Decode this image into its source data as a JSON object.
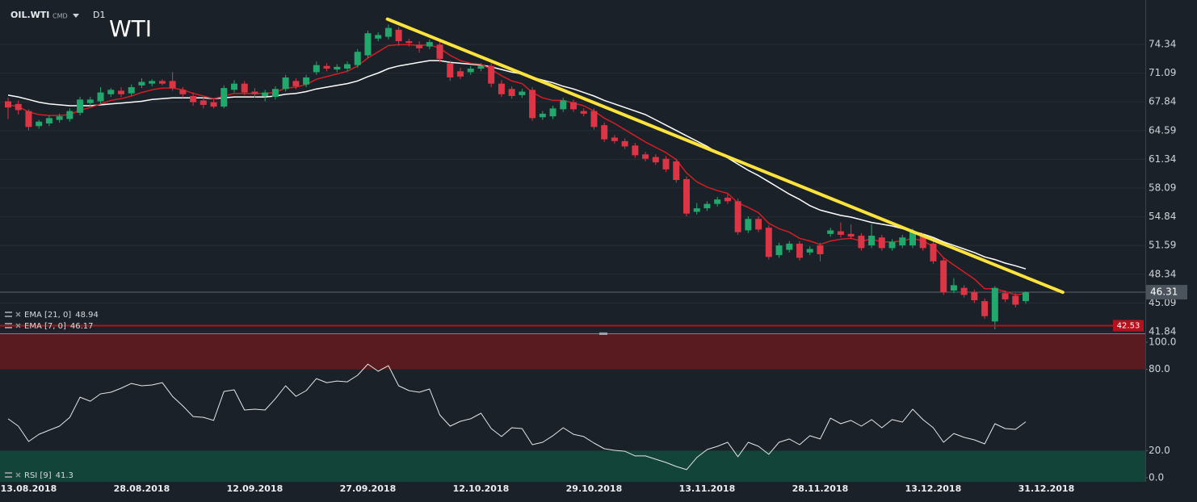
{
  "header": {
    "symbol": "OIL.WTI",
    "market": "CMD",
    "timeframe": "D1",
    "title": "WTI"
  },
  "chart_data": [
    {
      "type": "candlestick",
      "categories": [
        null,
        null,
        "13.08.2018",
        null,
        null,
        null,
        null,
        null,
        null,
        null,
        null,
        null,
        null,
        "28.08.2018",
        null,
        null,
        null,
        null,
        null,
        null,
        null,
        null,
        null,
        null,
        "12.09.2018",
        null,
        null,
        null,
        null,
        null,
        null,
        null,
        null,
        null,
        null,
        "27.09.2018",
        null,
        null,
        null,
        null,
        null,
        null,
        null,
        null,
        null,
        null,
        "12.10.2018",
        null,
        null,
        null,
        null,
        null,
        null,
        null,
        null,
        null,
        null,
        "29.10.2018",
        null,
        null,
        null,
        null,
        null,
        null,
        null,
        null,
        null,
        null,
        "13.11.2018",
        null,
        null,
        null,
        null,
        null,
        null,
        null,
        null,
        null,
        null,
        "28.11.2018",
        null,
        null,
        null,
        null,
        null,
        null,
        null,
        null,
        null,
        null,
        "13.12.2018",
        null,
        null,
        null,
        null,
        null,
        null,
        null,
        null,
        null,
        null,
        "31.12.2018"
      ],
      "open": [
        67.9,
        67.6,
        66.8,
        65.1,
        65.4,
        65.8,
        65.9,
        66.6,
        67.7,
        67.9,
        68.7,
        69.1,
        68.8,
        69.7,
        69.9,
        70.2,
        70.2,
        69.2,
        68.5,
        68.0,
        67.8,
        67.3,
        69.2,
        69.9,
        69.0,
        68.5,
        68.4,
        69.3,
        70.2,
        69.8,
        71.2,
        71.9,
        71.5,
        71.6,
        72.0,
        73.1,
        75.0,
        75.2,
        76.0,
        74.7,
        74.3,
        74.1,
        74.3,
        72.2,
        71.3,
        71.2,
        71.6,
        71.9,
        69.9,
        69.3,
        68.6,
        69.2,
        66.1,
        66.2,
        67.0,
        67.8,
        66.8,
        66.8,
        65.2,
        63.8,
        63.4,
        62.9,
        61.9,
        61.6,
        61.4,
        61.1,
        59.1,
        55.4,
        55.8,
        56.3,
        57.0,
        56.6,
        53.3,
        54.6,
        53.6,
        50.5,
        51.1,
        51.8,
        50.8,
        51.6,
        52.9,
        53.2,
        52.9,
        52.7,
        51.6,
        52.5,
        51.3,
        51.6,
        51.6,
        52.7,
        51.8,
        49.9,
        46.5,
        46.8,
        46.3,
        45.3,
        43.0,
        46.2,
        45.9,
        45.3,
        null,
        null
      ],
      "high": [
        68.3,
        68.0,
        67.0,
        65.8,
        66.3,
        66.5,
        67.1,
        68.4,
        68.4,
        69.5,
        69.4,
        69.5,
        69.8,
        70.5,
        70.4,
        70.4,
        71.2,
        69.5,
        68.9,
        68.4,
        68.2,
        69.7,
        70.3,
        70.2,
        69.4,
        69.2,
        69.6,
        70.9,
        70.5,
        70.9,
        72.4,
        72.2,
        72.1,
        72.4,
        73.8,
        75.9,
        75.7,
        76.6,
        76.3,
        75.0,
        74.7,
        74.9,
        74.6,
        72.5,
        71.7,
        71.9,
        72.2,
        72.2,
        70.3,
        69.6,
        69.3,
        69.5,
        66.8,
        67.4,
        68.3,
        68.1,
        67.1,
        67.1,
        65.5,
        64.1,
        63.7,
        63.2,
        62.2,
        61.9,
        61.7,
        61.4,
        59.4,
        56.4,
        56.6,
        57.1,
        57.4,
        56.9,
        54.9,
        54.9,
        53.9,
        51.9,
        52.1,
        52.1,
        51.5,
        51.9,
        53.6,
        54.2,
        54.0,
        53.0,
        54.0,
        52.8,
        52.3,
        52.8,
        53.5,
        53.0,
        52.1,
        50.2,
        47.9,
        47.1,
        46.6,
        45.6,
        47.0,
        46.5,
        46.2,
        46.4,
        null,
        null
      ],
      "low": [
        65.9,
        66.4,
        64.6,
        64.8,
        65.1,
        65.5,
        65.6,
        66.3,
        67.3,
        67.6,
        68.4,
        68.4,
        68.5,
        69.4,
        69.6,
        69.7,
        69.1,
        68.3,
        67.4,
        67.1,
        67.1,
        67.1,
        68.9,
        68.6,
        68.3,
        67.9,
        68.1,
        69.0,
        69.3,
        69.5,
        70.9,
        71.3,
        71.2,
        71.3,
        71.7,
        72.8,
        74.7,
        74.9,
        74.2,
        74.1,
        73.4,
        73.8,
        72.3,
        70.2,
        70.4,
        70.9,
        71.3,
        69.5,
        68.4,
        68.2,
        68.3,
        65.7,
        65.8,
        65.9,
        66.7,
        66.7,
        66.2,
        64.7,
        63.3,
        63.1,
        62.5,
        61.5,
        61.1,
        60.7,
        59.9,
        58.7,
        54.9,
        55.1,
        55.5,
        56.0,
        56.3,
        52.8,
        53.0,
        53.1,
        50.0,
        50.2,
        50.8,
        49.9,
        50.5,
        49.8,
        52.6,
        52.5,
        52.3,
        51.0,
        51.3,
        51.0,
        51.0,
        51.3,
        51.3,
        51.0,
        49.5,
        46.0,
        46.2,
        45.7,
        45.1,
        43.3,
        42.1,
        45.2,
        44.6,
        45.0,
        null,
        null
      ],
      "close": [
        67.2,
        66.9,
        65.0,
        65.6,
        66.0,
        66.2,
        66.8,
        68.1,
        68.1,
        68.9,
        69.2,
        68.7,
        69.5,
        70.1,
        70.2,
        69.9,
        69.4,
        68.7,
        67.8,
        67.5,
        67.3,
        69.4,
        69.9,
        68.9,
        68.7,
        68.9,
        69.3,
        70.6,
        69.6,
        70.6,
        72.0,
        71.6,
        71.8,
        72.1,
        73.5,
        75.6,
        75.4,
        76.2,
        74.7,
        74.5,
        73.9,
        74.6,
        72.7,
        70.6,
        70.7,
        71.6,
        71.9,
        69.9,
        68.7,
        68.5,
        69.0,
        66.0,
        66.5,
        67.1,
        68.0,
        67.0,
        66.5,
        65.0,
        63.6,
        63.4,
        62.8,
        61.8,
        61.4,
        61.0,
        60.2,
        59.0,
        55.2,
        55.8,
        56.3,
        56.8,
        56.6,
        53.1,
        54.6,
        53.4,
        50.3,
        51.6,
        51.8,
        50.2,
        51.2,
        50.6,
        53.3,
        52.8,
        52.6,
        51.3,
        52.7,
        51.3,
        52.0,
        52.5,
        53.2,
        51.3,
        49.8,
        46.3,
        47.1,
        46.0,
        45.4,
        43.6,
        46.8,
        45.5,
        44.9,
        46.31,
        null,
        null
      ],
      "up_color": "#22a86c",
      "down_color": "#dc3545",
      "series": [
        {
          "name": "EMA [21, 0]",
          "color": "#ffffff",
          "values": [
            68.6,
            68.4,
            68.1,
            67.8,
            67.6,
            67.5,
            67.4,
            67.4,
            67.4,
            67.5,
            67.6,
            67.7,
            67.8,
            67.9,
            68.1,
            68.2,
            68.3,
            68.3,
            68.3,
            68.3,
            68.2,
            68.3,
            68.4,
            68.4,
            68.4,
            68.4,
            68.5,
            68.7,
            68.8,
            69.0,
            69.3,
            69.5,
            69.7,
            69.9,
            70.2,
            70.7,
            71.1,
            71.6,
            71.9,
            72.1,
            72.3,
            72.5,
            72.5,
            72.3,
            72.2,
            72.1,
            72.0,
            71.8,
            71.5,
            71.2,
            71.0,
            70.6,
            70.3,
            70.0,
            69.6,
            69.3,
            68.9,
            68.5,
            68.0,
            67.6,
            67.2,
            66.8,
            66.4,
            65.8,
            65.2,
            64.6,
            64.0,
            63.4,
            62.8,
            62.1,
            61.5,
            60.8,
            60.1,
            59.5,
            58.8,
            58.1,
            57.4,
            56.8,
            56.1,
            55.6,
            55.3,
            55.0,
            54.8,
            54.5,
            54.2,
            54.0,
            53.8,
            53.5,
            53.2,
            52.9,
            52.5,
            52.0,
            51.6,
            51.2,
            50.8,
            50.3,
            50.0,
            49.6,
            49.3,
            48.94,
            null,
            null
          ]
        },
        {
          "name": "EMA [7, 0]",
          "color": "#d41d24",
          "values": [
            67.5,
            67.3,
            66.7,
            66.4,
            66.3,
            66.3,
            66.4,
            66.9,
            67.2,
            67.6,
            68.0,
            68.2,
            68.5,
            68.9,
            69.2,
            69.4,
            69.4,
            69.2,
            68.8,
            68.5,
            68.2,
            68.5,
            68.8,
            68.8,
            68.8,
            68.8,
            68.9,
            69.4,
            69.5,
            69.8,
            70.4,
            70.7,
            71.0,
            71.3,
            71.9,
            72.8,
            73.5,
            74.2,
            74.3,
            74.3,
            74.2,
            74.3,
            73.9,
            73.1,
            72.5,
            72.2,
            72.1,
            71.5,
            70.8,
            70.2,
            69.9,
            68.9,
            68.3,
            68.0,
            68.0,
            67.7,
            67.4,
            66.8,
            66.0,
            65.4,
            64.7,
            64.0,
            63.3,
            62.7,
            62.1,
            61.3,
            59.8,
            58.8,
            58.2,
            57.8,
            57.5,
            56.4,
            55.9,
            55.3,
            54.1,
            53.5,
            53.1,
            52.4,
            52.1,
            51.7,
            52.1,
            52.3,
            52.4,
            52.1,
            52.3,
            52.0,
            52.0,
            52.1,
            52.4,
            52.1,
            51.5,
            50.2,
            49.4,
            48.6,
            47.8,
            46.7,
            46.7,
            46.4,
            46.0,
            46.17,
            null,
            null
          ]
        }
      ],
      "ylim": [
        41.75,
        79.36
      ],
      "yticks": [
        41.84,
        45.09,
        48.34,
        51.59,
        54.84,
        58.09,
        61.34,
        64.59,
        67.84,
        71.09,
        74.34
      ],
      "grid": true,
      "trendline": {
        "x": [
          36.9,
          102.6
        ],
        "y": [
          77.2,
          46.3
        ],
        "color": "#ffe33d"
      },
      "levels": [
        {
          "value": 42.53,
          "color": "#b3121c"
        }
      ]
    },
    {
      "type": "line",
      "series": [
        {
          "name": "RSI [9]",
          "color": "#e6e6e6",
          "values": [
            43.5,
            38.1,
            26.8,
            32.1,
            35.1,
            38.1,
            44.6,
            59.5,
            56.5,
            61.9,
            63.1,
            66.1,
            69.6,
            67.9,
            68.5,
            70.2,
            60.1,
            53.0,
            45.2,
            44.6,
            42.3,
            63.7,
            64.9,
            50.0,
            50.6,
            50.0,
            58.3,
            67.9,
            60.1,
            64.3,
            73.2,
            70.2,
            71.4,
            70.8,
            75.6,
            83.9,
            78.6,
            82.7,
            67.9,
            64.3,
            63.1,
            65.5,
            46.4,
            38.1,
            41.7,
            43.5,
            47.6,
            36.3,
            30.4,
            36.9,
            36.3,
            24.4,
            26.2,
            31.0,
            36.9,
            32.1,
            30.4,
            25.6,
            21.4,
            20.2,
            19.6,
            16.1,
            16.1,
            13.7,
            11.3,
            8.3,
            6.0,
            14.9,
            20.8,
            23.2,
            26.2,
            15.5,
            26.2,
            23.2,
            17.3,
            26.2,
            28.6,
            24.4,
            31.0,
            28.6,
            44.0,
            39.9,
            42.3,
            38.1,
            42.9,
            36.9,
            42.9,
            41.1,
            50.6,
            42.9,
            36.9,
            26.2,
            32.7,
            29.8,
            28.0,
            25.0,
            39.9,
            36.3,
            35.7,
            41.3,
            null,
            null
          ]
        }
      ],
      "ylim": [
        -3,
        106
      ],
      "yticks": [
        {
          "value": 0,
          "label": "0.0"
        },
        {
          "value": 20,
          "label": "20.0"
        },
        {
          "value": 80,
          "label": "80.0"
        },
        {
          "value": 100,
          "label": "100.0"
        }
      ],
      "bands": [
        {
          "from": 80,
          "to": 106,
          "color": "#5a1b20"
        },
        {
          "from": -3,
          "to": 20,
          "color": "#12443a"
        }
      ]
    }
  ]
}
